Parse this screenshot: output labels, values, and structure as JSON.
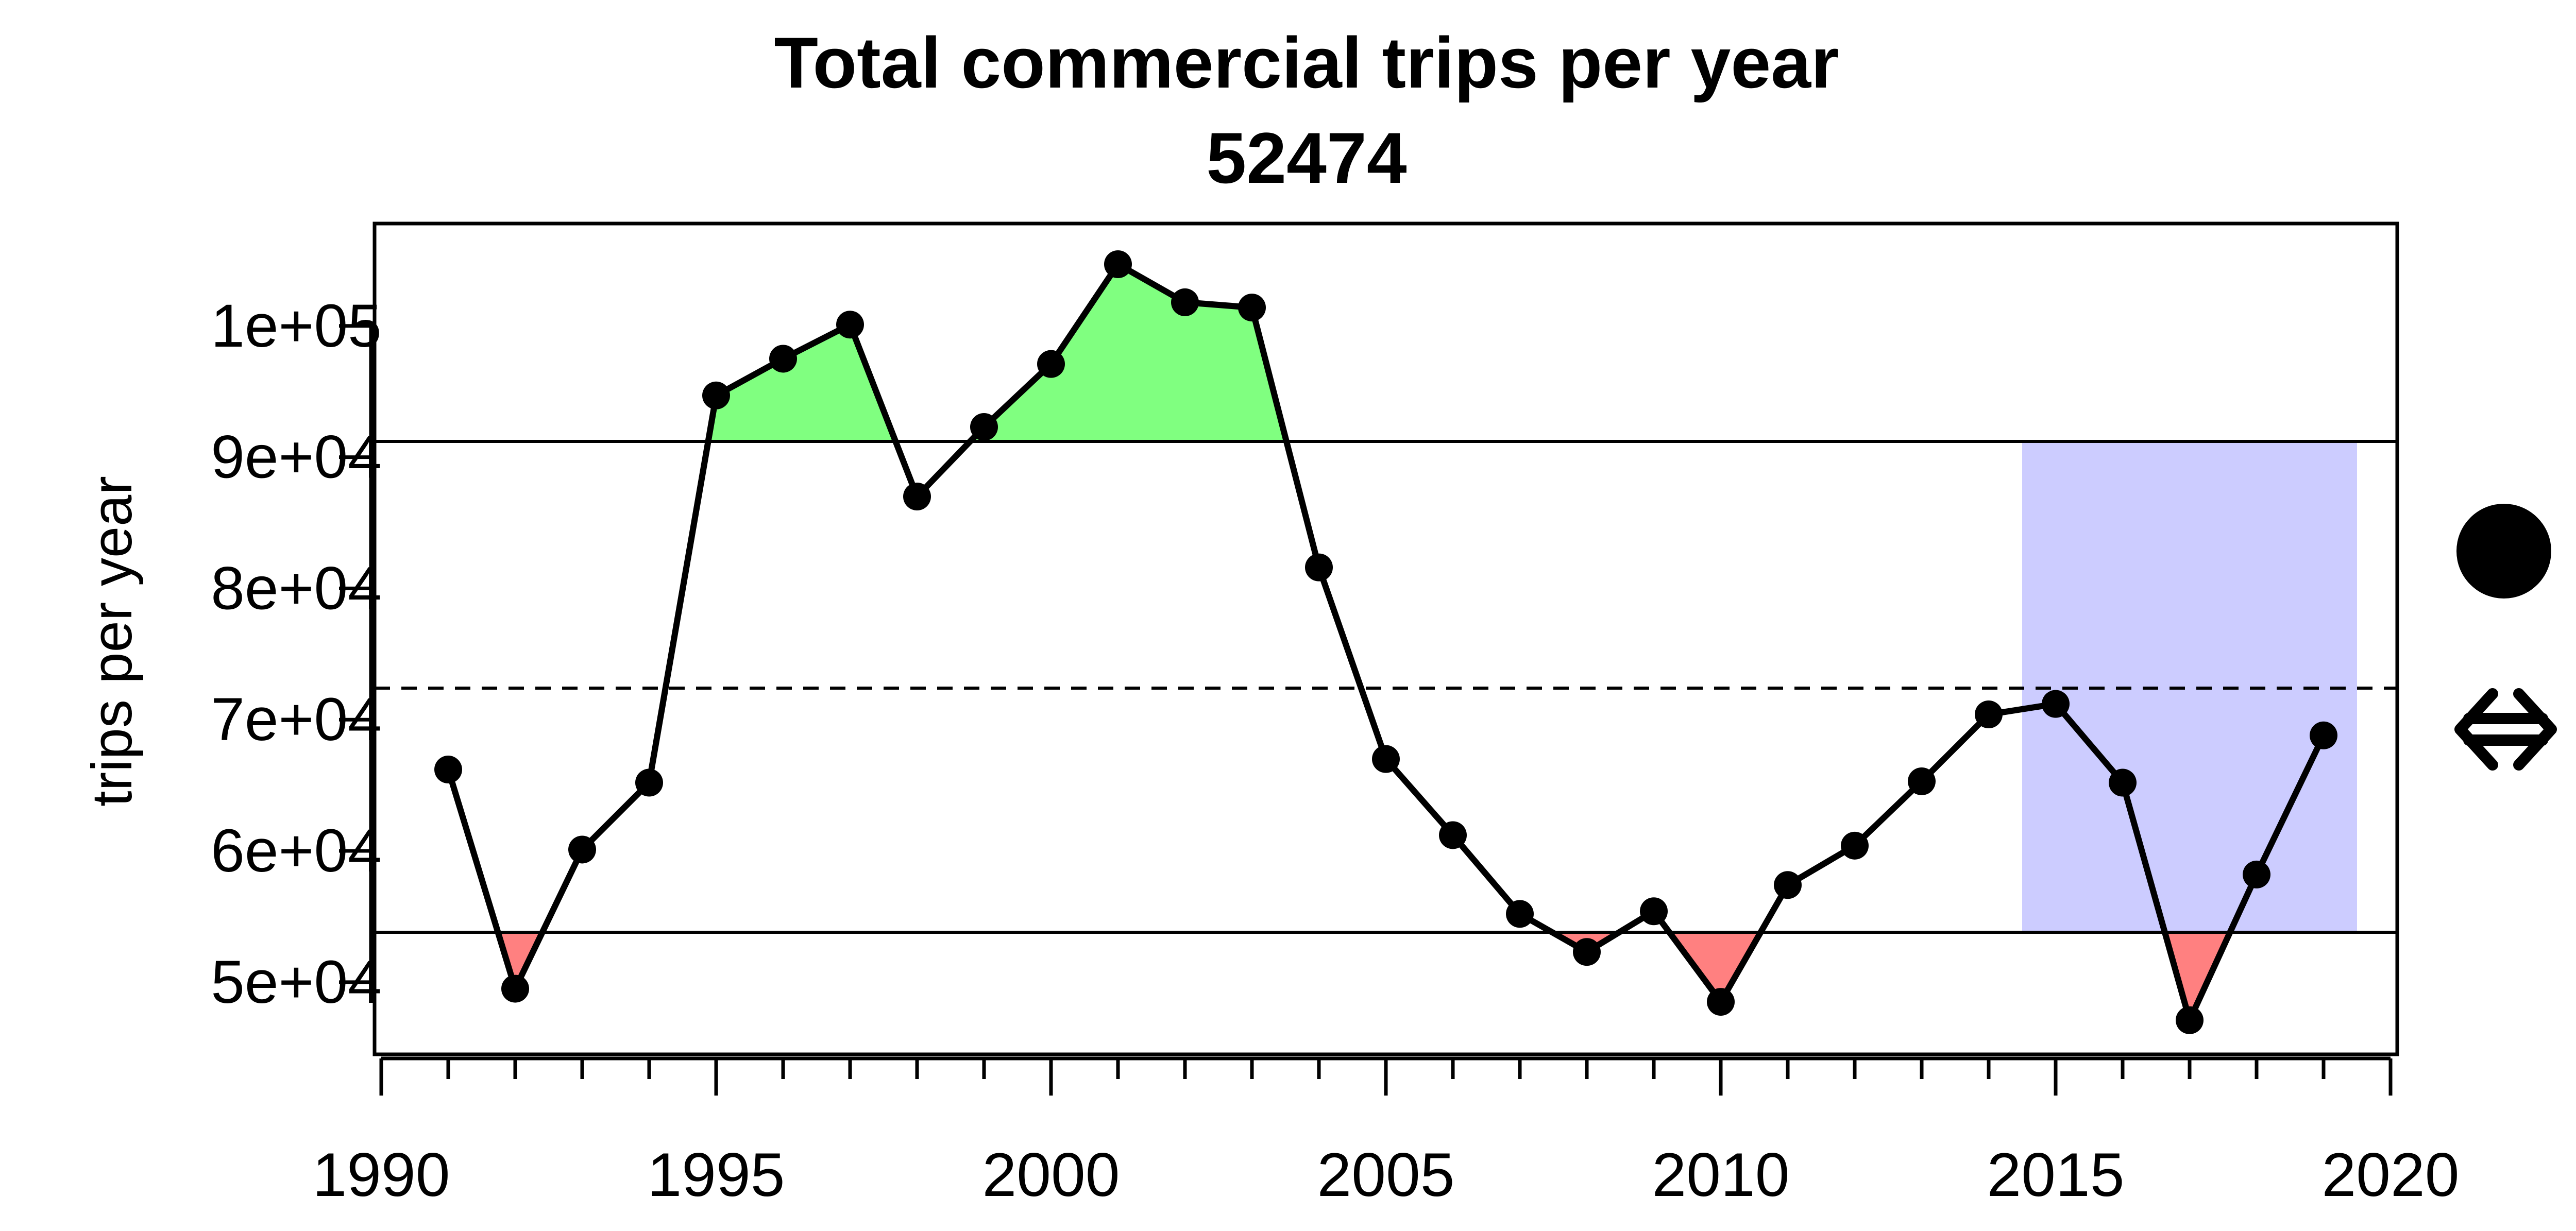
{
  "chart_data": {
    "type": "line",
    "title": "Total commercial trips per year",
    "subtitle": "52474",
    "xlabel": "",
    "ylabel": "trips per year",
    "xlim": [
      1989.9,
      2020.1
    ],
    "ylim": [
      44500,
      107800
    ],
    "x_ticks": [
      1990,
      1995,
      2000,
      2005,
      2010,
      2015,
      2020
    ],
    "x_tick_labels": [
      "1990",
      "1995",
      "2000",
      "2005",
      "2010",
      "2015",
      "2020"
    ],
    "y_ticks": [
      50000,
      60000,
      70000,
      80000,
      90000,
      100000
    ],
    "y_tick_labels": [
      "5e+04",
      "6e+04",
      "7e+04",
      "8e+04",
      "9e+04",
      "1e+05"
    ],
    "series": [
      {
        "x": [
          1991,
          1992,
          1993,
          1994,
          1995,
          1996,
          1997,
          1998,
          1999,
          2000,
          2001,
          2002,
          2003,
          2004,
          2005,
          2006,
          2007,
          2008,
          2009,
          2010,
          2011,
          2012,
          2013,
          2014,
          2015,
          2016,
          2017,
          2018,
          2019
        ],
        "values": [
          66200,
          49500,
          60100,
          65200,
          94700,
          97500,
          100100,
          87000,
          92300,
          97100,
          104700,
          101800,
          101400,
          81600,
          67000,
          61200,
          55200,
          52300,
          55400,
          48500,
          57400,
          60400,
          65300,
          70400,
          71200,
          65200,
          47100,
          58200,
          68800
        ]
      }
    ],
    "reference_lines": {
      "upper": 91200,
      "mean": 72400,
      "lower": 53800
    },
    "highlight_range": {
      "x": [
        2014.5,
        2019.5
      ],
      "y": [
        53800,
        91200
      ]
    },
    "colors": {
      "above_fill": "#80ff80",
      "below_fill": "#ff8080",
      "highlight": "#ccccff",
      "line": "#000000"
    },
    "legend_icons": [
      "filled-circle-icon",
      "left-right-arrow-icon"
    ],
    "grid": false
  }
}
